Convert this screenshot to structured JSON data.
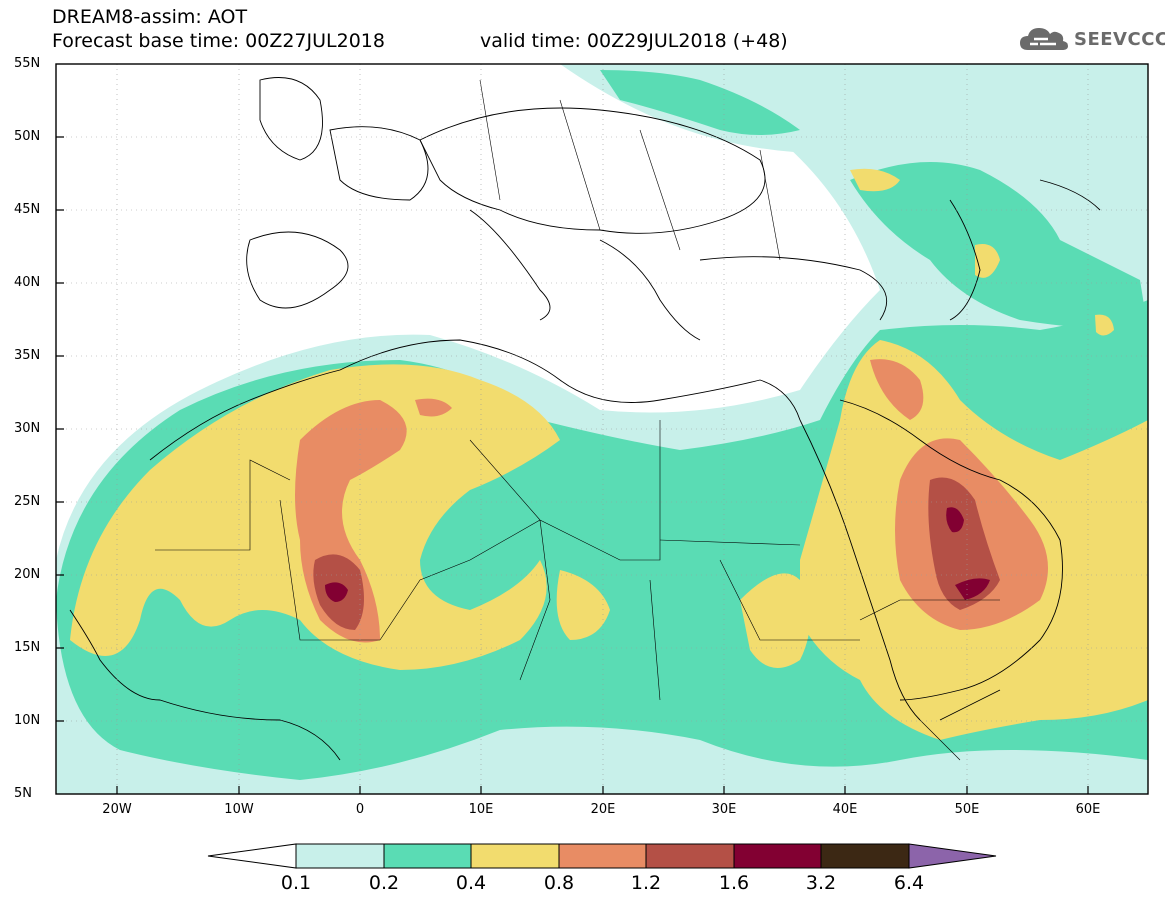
{
  "header": {
    "title": "DREAM8-assim: AOT",
    "base_time": "Forecast base time: 00Z27JUL2018",
    "valid_time": "valid time: 00Z29JUL2018 (+48)"
  },
  "logo": {
    "text": "SEEVCCC",
    "icon": "cloud-icon"
  },
  "map": {
    "lat_labels": [
      "55N",
      "50N",
      "45N",
      "40N",
      "35N",
      "30N",
      "25N",
      "20N",
      "15N",
      "10N",
      "5N"
    ],
    "lon_labels": [
      "20W",
      "10W",
      "0",
      "10E",
      "20E",
      "30E",
      "40E",
      "50E",
      "60E"
    ],
    "field": "AOT",
    "colors": {
      "c1": "#c8f0ea",
      "c2": "#5adcb4",
      "c3": "#f2dc6e",
      "c4": "#e88c64",
      "c5": "#b45046",
      "c6": "#820032",
      "c7": "#3c2814",
      "c8": "#8c64aa"
    }
  },
  "colorbar": {
    "labels": [
      "0.1",
      "0.2",
      "0.4",
      "0.8",
      "1.2",
      "1.6",
      "3.2",
      "6.4"
    ],
    "colors": [
      "#ffffff",
      "#c8f0ea",
      "#5adcb4",
      "#f2dc6e",
      "#e88c64",
      "#b45046",
      "#820032",
      "#3c2814",
      "#8c64aa"
    ]
  }
}
